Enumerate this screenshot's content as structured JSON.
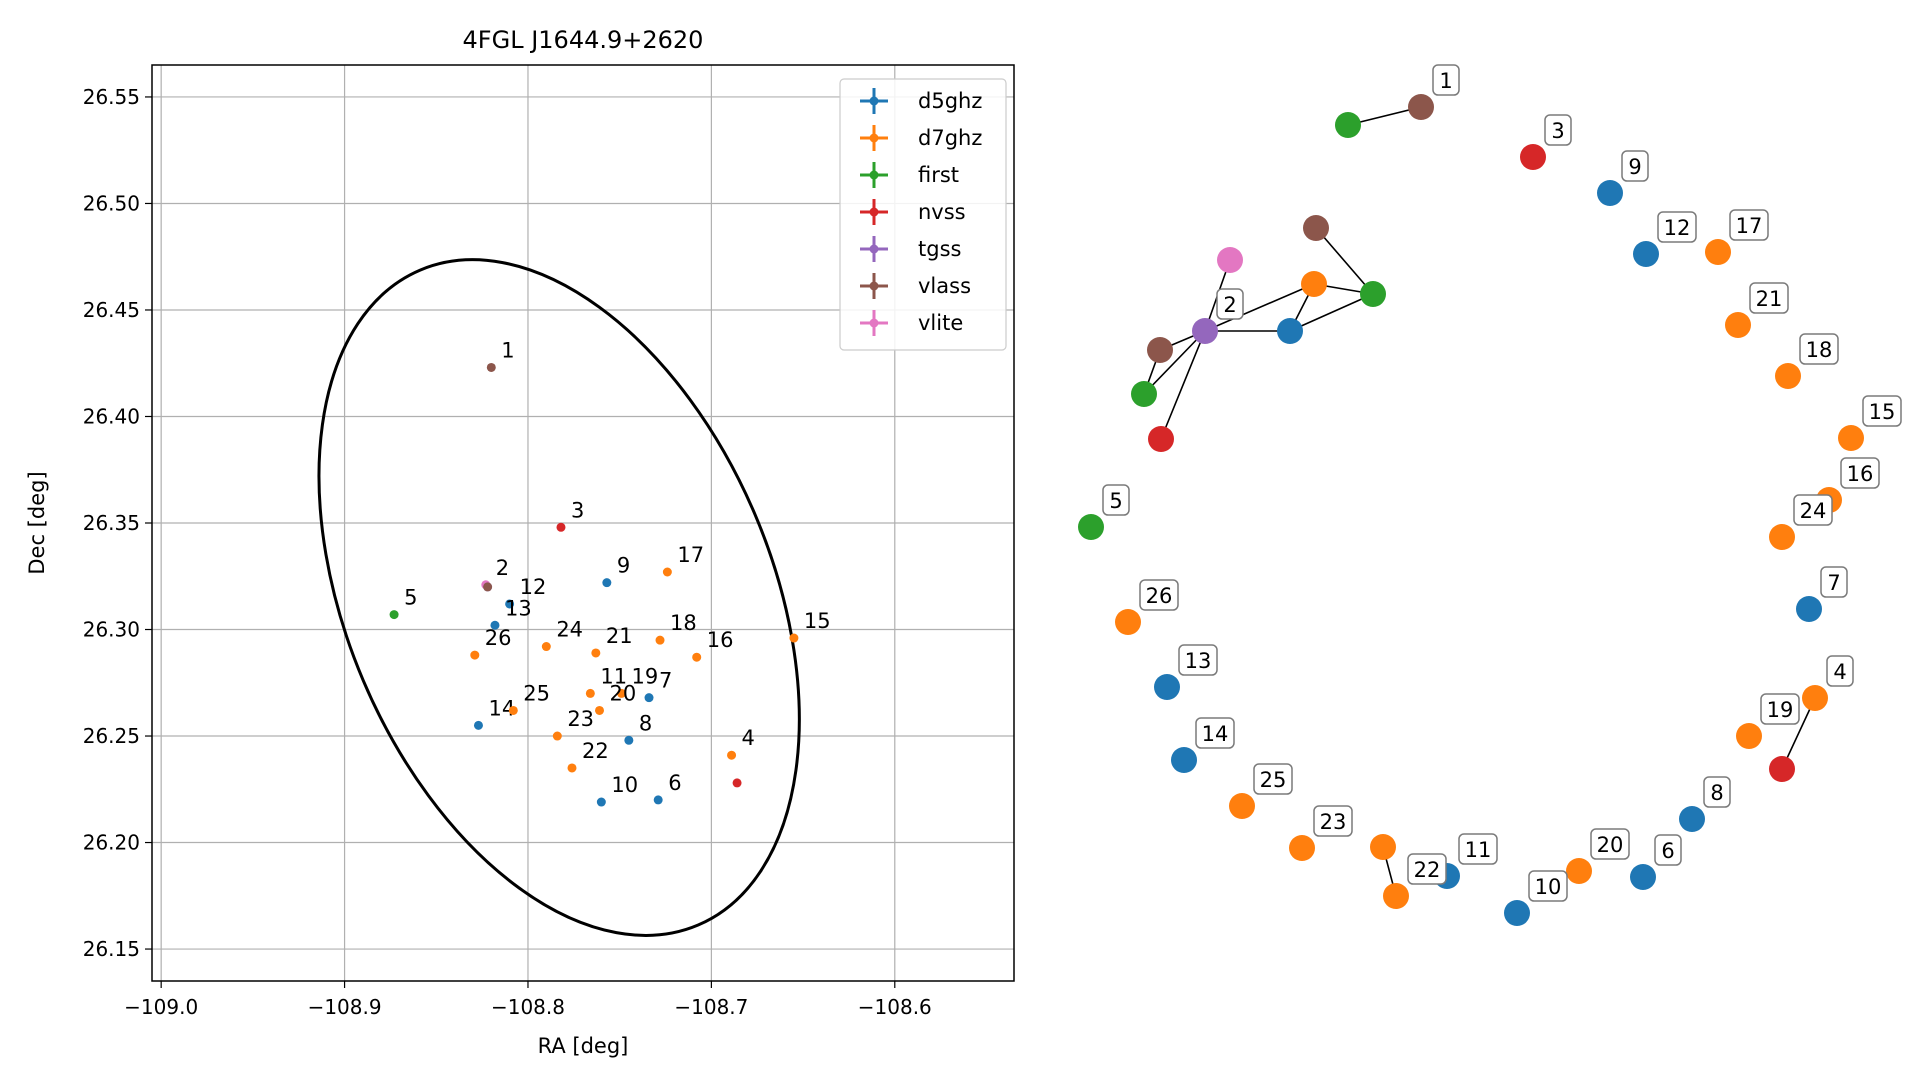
{
  "chart_data": [
    {
      "type": "scatter",
      "title": "4FGL J1644.9+2620",
      "xlabel": "RA [deg]",
      "ylabel": "Dec [deg]",
      "xlim": [
        -109.005,
        -108.535
      ],
      "ylim": [
        26.135,
        26.565
      ],
      "xticks": [
        -109.0,
        -108.9,
        -108.8,
        -108.7,
        -108.6
      ],
      "xtick_labels": [
        "−109.0",
        "−108.9",
        "−108.8",
        "−108.7",
        "−108.6"
      ],
      "yticks": [
        26.15,
        26.2,
        26.25,
        26.3,
        26.35,
        26.4,
        26.45,
        26.5,
        26.55
      ],
      "ytick_labels": [
        "26.15",
        "26.20",
        "26.25",
        "26.30",
        "26.35",
        "26.40",
        "26.45",
        "26.50",
        "26.55"
      ],
      "grid": true,
      "legend_position": "top-right",
      "legend": [
        {
          "name": "d5ghz",
          "color": "#1f77b4"
        },
        {
          "name": "d7ghz",
          "color": "#ff7f0e"
        },
        {
          "name": "first",
          "color": "#2ca02c"
        },
        {
          "name": "nvss",
          "color": "#d62728"
        },
        {
          "name": "tgss",
          "color": "#9467bd"
        },
        {
          "name": "vlass",
          "color": "#8c564b"
        },
        {
          "name": "vlite",
          "color": "#e377c2"
        }
      ],
      "ellipse": {
        "center": [
          -108.783,
          26.315
        ],
        "ra_halfwidth": 0.116,
        "dec_halfwidth": 0.167,
        "angle_deg": -23,
        "color": "#000000"
      },
      "points": [
        {
          "label": "1",
          "series": "vlass",
          "x": -108.82,
          "y": 26.423
        },
        {
          "label": "2",
          "series": "vlite",
          "x": -108.823,
          "y": 26.321
        },
        {
          "label": "",
          "series": "tgss",
          "x": -108.822,
          "y": 26.32
        },
        {
          "label": "",
          "series": "vlass",
          "x": -108.822,
          "y": 26.32
        },
        {
          "label": "3",
          "series": "nvss",
          "x": -108.782,
          "y": 26.348
        },
        {
          "label": "4",
          "series": "d7ghz",
          "x": -108.689,
          "y": 26.241
        },
        {
          "label": "",
          "series": "nvss",
          "x": -108.686,
          "y": 26.228
        },
        {
          "label": "5",
          "series": "first",
          "x": -108.873,
          "y": 26.307
        },
        {
          "label": "6",
          "series": "d5ghz",
          "x": -108.729,
          "y": 26.22
        },
        {
          "label": "7",
          "series": "d5ghz",
          "x": -108.734,
          "y": 26.268
        },
        {
          "label": "8",
          "series": "d5ghz",
          "x": -108.745,
          "y": 26.248
        },
        {
          "label": "9",
          "series": "d5ghz",
          "x": -108.757,
          "y": 26.322
        },
        {
          "label": "10",
          "series": "d5ghz",
          "x": -108.76,
          "y": 26.219
        },
        {
          "label": "11",
          "series": "d7ghz",
          "x": -108.766,
          "y": 26.27
        },
        {
          "label": "12",
          "series": "d5ghz",
          "x": -108.81,
          "y": 26.312
        },
        {
          "label": "13",
          "series": "d5ghz",
          "x": -108.818,
          "y": 26.302
        },
        {
          "label": "14",
          "series": "d5ghz",
          "x": -108.827,
          "y": 26.255
        },
        {
          "label": "15",
          "series": "d7ghz",
          "x": -108.655,
          "y": 26.296
        },
        {
          "label": "16",
          "series": "d7ghz",
          "x": -108.708,
          "y": 26.287
        },
        {
          "label": "17",
          "series": "d7ghz",
          "x": -108.724,
          "y": 26.327
        },
        {
          "label": "18",
          "series": "d7ghz",
          "x": -108.728,
          "y": 26.295
        },
        {
          "label": "19",
          "series": "d7ghz",
          "x": -108.749,
          "y": 26.27
        },
        {
          "label": "20",
          "series": "d7ghz",
          "x": -108.761,
          "y": 26.262
        },
        {
          "label": "21",
          "series": "d7ghz",
          "x": -108.763,
          "y": 26.289
        },
        {
          "label": "22",
          "series": "d7ghz",
          "x": -108.776,
          "y": 26.235
        },
        {
          "label": "23",
          "series": "d7ghz",
          "x": -108.784,
          "y": 26.25
        },
        {
          "label": "24",
          "series": "d7ghz",
          "x": -108.79,
          "y": 26.292
        },
        {
          "label": "25",
          "series": "d7ghz",
          "x": -108.808,
          "y": 26.262
        },
        {
          "label": "26",
          "series": "d7ghz",
          "x": -108.829,
          "y": 26.288
        }
      ]
    },
    {
      "type": "graph",
      "nodes": [
        {
          "id": "n1a",
          "label": "1",
          "series": "vlass"
        },
        {
          "id": "n1b",
          "label": "",
          "series": "first"
        },
        {
          "id": "n3",
          "label": "3",
          "series": "nvss"
        },
        {
          "id": "n9",
          "label": "9",
          "series": "d5ghz"
        },
        {
          "id": "n12",
          "label": "12",
          "series": "d5ghz"
        },
        {
          "id": "n17",
          "label": "17",
          "series": "d7ghz"
        },
        {
          "id": "n21",
          "label": "21",
          "series": "d7ghz"
        },
        {
          "id": "n18",
          "label": "18",
          "series": "d7ghz"
        },
        {
          "id": "n15",
          "label": "15",
          "series": "d7ghz"
        },
        {
          "id": "n16",
          "label": "16",
          "series": "d7ghz"
        },
        {
          "id": "n24",
          "label": "24",
          "series": "d7ghz"
        },
        {
          "id": "n7",
          "label": "7",
          "series": "d5ghz"
        },
        {
          "id": "n4a",
          "label": "4",
          "series": "d7ghz"
        },
        {
          "id": "n4b",
          "label": "",
          "series": "nvss"
        },
        {
          "id": "n19",
          "label": "19",
          "series": "d7ghz"
        },
        {
          "id": "n8",
          "label": "8",
          "series": "d5ghz"
        },
        {
          "id": "n6",
          "label": "6",
          "series": "d5ghz"
        },
        {
          "id": "n20",
          "label": "20",
          "series": "d7ghz"
        },
        {
          "id": "n10",
          "label": "10",
          "series": "d5ghz"
        },
        {
          "id": "n11a",
          "label": "11",
          "series": "d5ghz"
        },
        {
          "id": "n11b",
          "label": "",
          "series": "d7ghz"
        },
        {
          "id": "n22",
          "label": "22",
          "series": "d7ghz"
        },
        {
          "id": "n23",
          "label": "23",
          "series": "d7ghz"
        },
        {
          "id": "n25",
          "label": "25",
          "series": "d7ghz"
        },
        {
          "id": "n14",
          "label": "14",
          "series": "d5ghz"
        },
        {
          "id": "n13",
          "label": "13",
          "series": "d5ghz"
        },
        {
          "id": "n26",
          "label": "26",
          "series": "d7ghz"
        },
        {
          "id": "n5",
          "label": "5",
          "series": "first"
        },
        {
          "id": "n2",
          "label": "2",
          "series": "tgss"
        },
        {
          "id": "c_vlite",
          "label": "",
          "series": "vlite"
        },
        {
          "id": "c_vlass1",
          "label": "",
          "series": "vlass"
        },
        {
          "id": "c_vlass2",
          "label": "",
          "series": "vlass"
        },
        {
          "id": "c_d7",
          "label": "",
          "series": "d7ghz"
        },
        {
          "id": "c_first1",
          "label": "",
          "series": "first"
        },
        {
          "id": "c_first2",
          "label": "",
          "series": "first"
        },
        {
          "id": "c_d5",
          "label": "",
          "series": "d5ghz"
        },
        {
          "id": "c_nvss",
          "label": "",
          "series": "nvss"
        }
      ],
      "edges": [
        [
          "n1a",
          "n1b"
        ],
        [
          "n4a",
          "n4b"
        ],
        [
          "n22",
          "n11b"
        ],
        [
          "n2",
          "c_vlite"
        ],
        [
          "n2",
          "c_vlass2"
        ],
        [
          "n2",
          "c_first2"
        ],
        [
          "n2",
          "c_nvss"
        ],
        [
          "n2",
          "c_d5"
        ],
        [
          "n2",
          "c_d7"
        ],
        [
          "c_d7",
          "c_first1"
        ],
        [
          "c_d7",
          "c_d5"
        ],
        [
          "c_vlass1",
          "c_first1"
        ],
        [
          "c_d5",
          "c_first1"
        ],
        [
          "c_vlass2",
          "c_first2"
        ]
      ]
    }
  ]
}
